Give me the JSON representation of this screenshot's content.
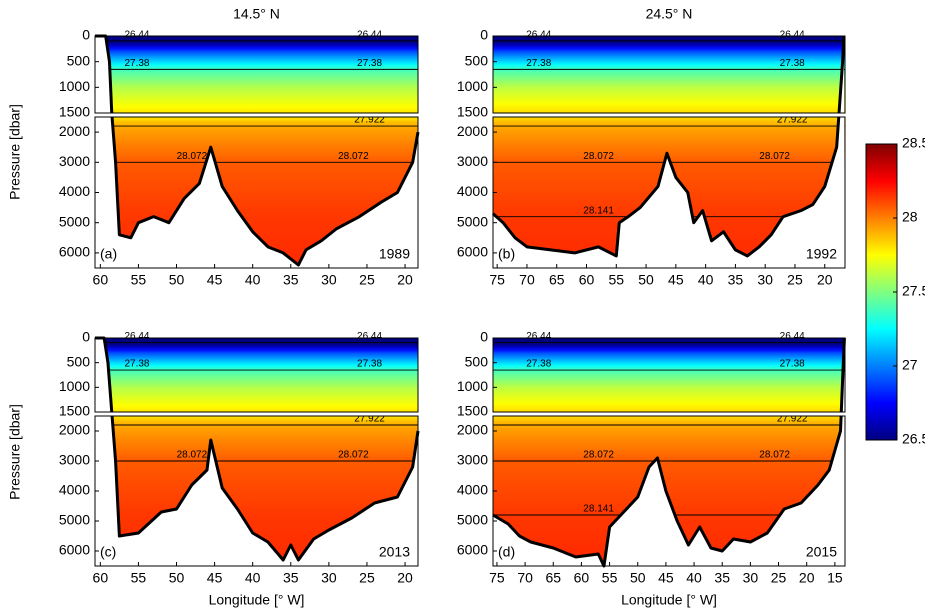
{
  "chart_data": [
    {
      "type": "section",
      "title": "14.5° N",
      "panel": "(a)",
      "year": "1989",
      "ylabel": "Pressure [dbar]",
      "xlim": [
        60.7,
        18.3
      ],
      "xticks": [
        60,
        55,
        50,
        45,
        40,
        35,
        30,
        25,
        20
      ],
      "ylim": [
        0,
        1500
      ],
      "yticks": [
        0,
        500,
        1000,
        1500
      ],
      "ylim_lower": [
        1500,
        6500
      ],
      "yticks_lower": [
        2000,
        3000,
        4000,
        5000,
        6000
      ],
      "contours": [
        26.44,
        27.38,
        27.922,
        28.072
      ],
      "profile": {
        "pressure": [
          0,
          100,
          300,
          650,
          1000,
          1500,
          1800,
          3000,
          4800,
          6500
        ],
        "density": [
          26.3,
          26.45,
          26.9,
          27.38,
          27.6,
          27.8,
          27.922,
          28.072,
          28.141,
          28.17
        ]
      },
      "bottom": {
        "x": [
          60.7,
          59.3,
          58.8,
          58.5,
          58,
          57.5,
          56,
          55,
          53,
          51,
          49,
          47,
          45.5,
          44,
          42,
          40,
          38,
          36,
          34,
          33,
          31,
          29,
          26,
          23,
          21,
          19,
          18.3
        ],
        "pressure": [
          0,
          0,
          500,
          1500,
          3000,
          5400,
          5500,
          5000,
          4800,
          5000,
          4200,
          3700,
          2500,
          3800,
          4600,
          5300,
          5800,
          6000,
          6400,
          5900,
          5600,
          5200,
          4800,
          4300,
          4000,
          3000,
          2000
        ]
      }
    },
    {
      "type": "section",
      "title": "24.5° N",
      "panel": "(b)",
      "year": "1992",
      "xlim": [
        75.7,
        16.6
      ],
      "xticks": [
        75,
        70,
        65,
        60,
        55,
        50,
        45,
        40,
        35,
        30,
        25,
        20
      ],
      "ylim": [
        0,
        1500
      ],
      "yticks": [
        0,
        500,
        1000,
        1500
      ],
      "ylim_lower": [
        1500,
        6500
      ],
      "yticks_lower": [
        2000,
        3000,
        4000,
        5000,
        6000
      ],
      "contours": [
        26.44,
        27.38,
        27.922,
        28.072,
        28.141
      ],
      "profile": {
        "pressure": [
          0,
          100,
          300,
          650,
          1000,
          1500,
          1800,
          3000,
          4800,
          6500
        ],
        "density": [
          26.3,
          26.45,
          26.9,
          27.38,
          27.62,
          27.82,
          27.922,
          28.072,
          28.141,
          28.17
        ]
      },
      "bottom": {
        "x": [
          75.7,
          74,
          72,
          70,
          66,
          62,
          58,
          55,
          54.5,
          53,
          51,
          48,
          46.5,
          45,
          43,
          42,
          40.5,
          39,
          37,
          35,
          33,
          31,
          29,
          27,
          24,
          22,
          20,
          18,
          17,
          16.8
        ],
        "pressure": [
          4700,
          5000,
          5500,
          5800,
          5900,
          6000,
          5800,
          6100,
          5000,
          4800,
          4500,
          3800,
          2700,
          3500,
          4000,
          5000,
          4600,
          5600,
          5300,
          5900,
          6100,
          5800,
          5400,
          4800,
          4600,
          4400,
          3800,
          2500,
          500,
          0
        ]
      }
    },
    {
      "type": "section",
      "panel": "(c)",
      "year": "2013",
      "ylabel": "Pressure [dbar]",
      "xlabel": "Longitude [° W]",
      "xlim": [
        60.7,
        18.3
      ],
      "xticks": [
        60,
        55,
        50,
        45,
        40,
        35,
        30,
        25,
        20
      ],
      "ylim": [
        0,
        1500
      ],
      "yticks": [
        0,
        500,
        1000,
        1500
      ],
      "ylim_lower": [
        1500,
        6500
      ],
      "yticks_lower": [
        2000,
        3000,
        4000,
        5000,
        6000
      ],
      "contours": [
        26.44,
        27.38,
        27.922,
        28.072
      ],
      "profile": {
        "pressure": [
          0,
          100,
          300,
          650,
          1000,
          1500,
          1800,
          3000,
          4800,
          6500
        ],
        "density": [
          26.3,
          26.45,
          26.9,
          27.38,
          27.6,
          27.8,
          27.922,
          28.072,
          28.141,
          28.17
        ]
      },
      "bottom": {
        "x": [
          60.7,
          59.5,
          59,
          58.5,
          58,
          57.5,
          55,
          52,
          50,
          48,
          46,
          45.5,
          44,
          42,
          40,
          38,
          36,
          35,
          34,
          32,
          30,
          27,
          24,
          21,
          19,
          18.3
        ],
        "pressure": [
          0,
          0,
          500,
          1500,
          3000,
          5500,
          5400,
          4700,
          4600,
          3800,
          3300,
          2300,
          3900,
          4600,
          5400,
          5700,
          6300,
          5800,
          6300,
          5600,
          5300,
          4900,
          4400,
          4200,
          3200,
          2000
        ]
      }
    },
    {
      "type": "section",
      "panel": "(d)",
      "year": "2015",
      "xlabel": "Longitude [° W]",
      "xlim": [
        75.7,
        13.2
      ],
      "xticks": [
        75,
        70,
        65,
        60,
        55,
        50,
        45,
        40,
        35,
        30,
        25,
        20,
        15
      ],
      "ylim": [
        0,
        1500
      ],
      "yticks": [
        0,
        500,
        1000,
        1500
      ],
      "ylim_lower": [
        1500,
        6500
      ],
      "yticks_lower": [
        2000,
        3000,
        4000,
        5000,
        6000
      ],
      "contours": [
        26.44,
        27.38,
        27.922,
        28.072,
        28.141
      ],
      "profile": {
        "pressure": [
          0,
          100,
          300,
          650,
          1000,
          1500,
          1800,
          3000,
          4800,
          6500
        ],
        "density": [
          26.3,
          26.45,
          26.9,
          27.38,
          27.62,
          27.82,
          27.922,
          28.072,
          28.141,
          28.17
        ]
      },
      "bottom": {
        "x": [
          75.7,
          73,
          71,
          69,
          65,
          61,
          57,
          56,
          55,
          53,
          50,
          48,
          46.5,
          45,
          43,
          41,
          39,
          37,
          35,
          33,
          30,
          27,
          24,
          21,
          18,
          16,
          14,
          13.5,
          13.3
        ],
        "pressure": [
          4800,
          5100,
          5500,
          5700,
          5900,
          6200,
          6100,
          6500,
          5200,
          4800,
          4200,
          3200,
          2900,
          4000,
          5000,
          5800,
          5200,
          5900,
          6000,
          5600,
          5700,
          5400,
          4600,
          4400,
          3800,
          3300,
          2000,
          500,
          0
        ]
      }
    }
  ],
  "colorbar": {
    "clim": [
      26.5,
      28.5
    ],
    "ticks": [
      26.5,
      27,
      27.5,
      28,
      28.5
    ]
  }
}
